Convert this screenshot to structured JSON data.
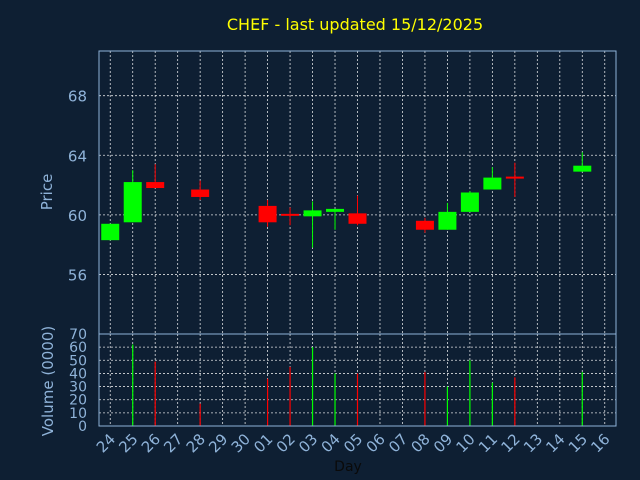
{
  "chart_data": {
    "type": "candlestick",
    "title": "CHEF - last updated 15/12/2025",
    "ylabel": "Price",
    "volume_label": "Volume (0000)",
    "xlabel": "Day",
    "price_ylim": [
      52.0,
      71.0
    ],
    "price_ticks": [
      "56",
      "60",
      "64",
      "68"
    ],
    "volume_ylim": [
      0,
      70
    ],
    "volume_ticks": [
      "0",
      "10",
      "20",
      "30",
      "40",
      "50",
      "60",
      "70"
    ],
    "x_ticks": [
      "24",
      "25",
      "26",
      "27",
      "28",
      "29",
      "30",
      "01",
      "02",
      "03",
      "04",
      "05",
      "06",
      "07",
      "08",
      "09",
      "10",
      "11",
      "12",
      "13",
      "14",
      "15",
      "16"
    ],
    "grid": true,
    "colors": {
      "up": "#00ff00",
      "down": "#ff0000",
      "flat": "#ff0000",
      "title": "#ffff00",
      "axis": "#8fb3d9",
      "grid": "#ffffff",
      "background": "#0e1f33"
    },
    "candles": [
      {
        "day": "24",
        "open": 58.3,
        "high": 59.4,
        "low": 58.3,
        "close": 59.4,
        "volume": 0
      },
      {
        "day": "25",
        "open": 59.5,
        "high": 63.0,
        "low": 59.5,
        "close": 62.2,
        "volume": 62
      },
      {
        "day": "26",
        "open": 62.2,
        "high": 63.4,
        "low": 61.8,
        "close": 61.8,
        "volume": 49
      },
      {
        "day": "28",
        "open": 61.7,
        "high": 62.3,
        "low": 61.0,
        "close": 61.2,
        "volume": 17
      },
      {
        "day": "01",
        "open": 60.6,
        "high": 61.0,
        "low": 59.2,
        "close": 59.5,
        "volume": 36
      },
      {
        "day": "02",
        "open": 60.0,
        "high": 60.5,
        "low": 59.3,
        "close": 60.0,
        "volume": 45
      },
      {
        "day": "03",
        "open": 59.9,
        "high": 60.9,
        "low": 57.8,
        "close": 60.3,
        "volume": 60
      },
      {
        "day": "04",
        "open": 60.2,
        "high": 60.4,
        "low": 59.0,
        "close": 60.4,
        "volume": 40
      },
      {
        "day": "05",
        "open": 60.1,
        "high": 61.3,
        "low": 59.3,
        "close": 59.4,
        "volume": 40
      },
      {
        "day": "08",
        "open": 59.6,
        "high": 59.8,
        "low": 58.8,
        "close": 59.0,
        "volume": 41
      },
      {
        "day": "09",
        "open": 59.0,
        "high": 60.8,
        "low": 59.0,
        "close": 60.2,
        "volume": 30
      },
      {
        "day": "10",
        "open": 60.2,
        "high": 61.6,
        "low": 60.2,
        "close": 61.5,
        "volume": 50
      },
      {
        "day": "11",
        "open": 61.7,
        "high": 63.2,
        "low": 61.7,
        "close": 62.5,
        "volume": 33
      },
      {
        "day": "12",
        "open": 62.5,
        "high": 63.5,
        "low": 61.2,
        "close": 62.4,
        "volume": 37
      },
      {
        "day": "15",
        "open": 62.9,
        "high": 64.2,
        "low": 62.9,
        "close": 63.3,
        "volume": 41
      }
    ]
  }
}
